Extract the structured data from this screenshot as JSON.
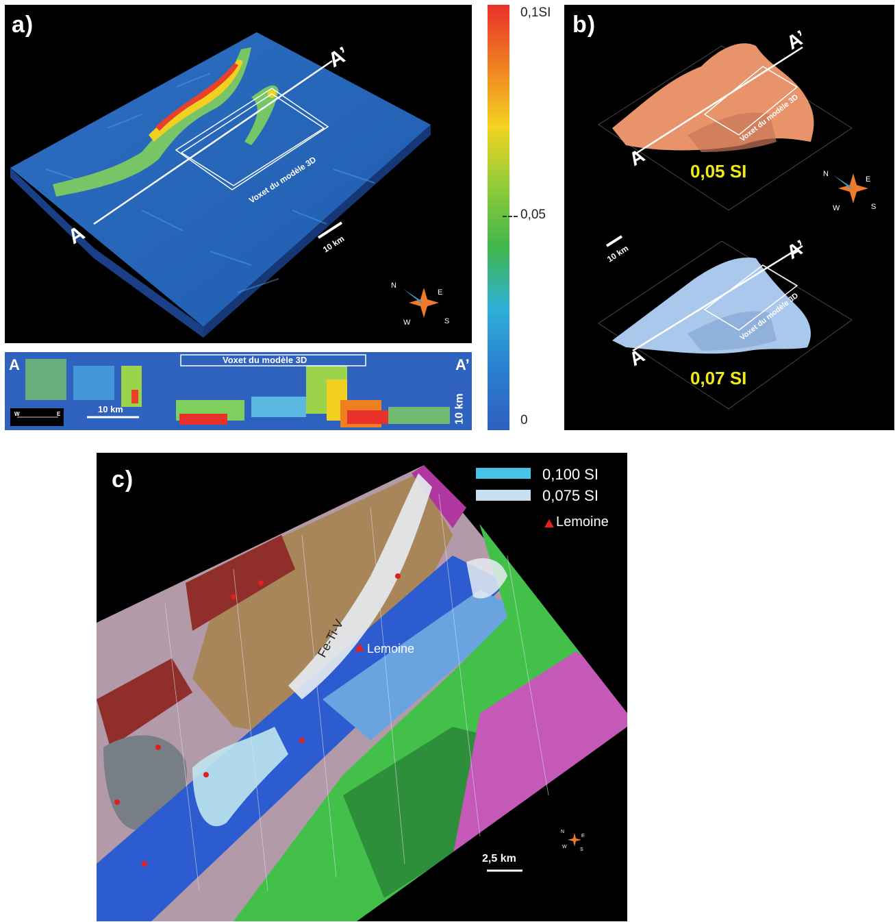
{
  "panel_a": {
    "label": "a)",
    "point_a": "A",
    "point_a_prime": "A’",
    "voxet_label": "Voxet du modèle 3D",
    "scale_label": "10 km",
    "compass": {
      "n": "N",
      "e": "E",
      "s": "S",
      "w": "W"
    }
  },
  "cross_section": {
    "left_label": "A",
    "right_label": "A’",
    "voxet_label": "Voxet du modèle 3D",
    "scale_label": "10 km",
    "vertical_scale_label": "10 km",
    "inset_w": "W",
    "inset_e": "E"
  },
  "colorbar": {
    "ticks": [
      "0,1SI",
      "0,05",
      "0"
    ],
    "colors": [
      "#e8312a",
      "#f07f22",
      "#f4d321",
      "#8fcc3a",
      "#3fb64b",
      "#2fb0d8",
      "#2a7fd0",
      "#2f5fbf"
    ]
  },
  "panel_b": {
    "label": "b)",
    "top_iso": "0,05 SI",
    "bottom_iso": "0,07 SI",
    "point_a": "A",
    "point_a_prime": "A’",
    "voxet_label": "Voxet du modèle 3D",
    "scale_label": "10 km",
    "compass": {
      "n": "N",
      "e": "E",
      "s": "S",
      "w": "W"
    },
    "top_color": "#e8936a",
    "bottom_color": "#a9c8ec"
  },
  "panel_c": {
    "label": "c)",
    "legend": [
      {
        "label": "0,100 SI",
        "color": "#46c3e8"
      },
      {
        "label": "0,075 SI",
        "color": "#c8dff0"
      },
      {
        "label": "Lemoine",
        "color": "#e02020"
      }
    ],
    "annotation_fe": "Fe-Ti-V",
    "annotation_lemoine": "Lemoine",
    "scale_label": "2,5 km",
    "compass": {
      "n": "N",
      "e": "E",
      "s": "S",
      "w": "W"
    }
  }
}
